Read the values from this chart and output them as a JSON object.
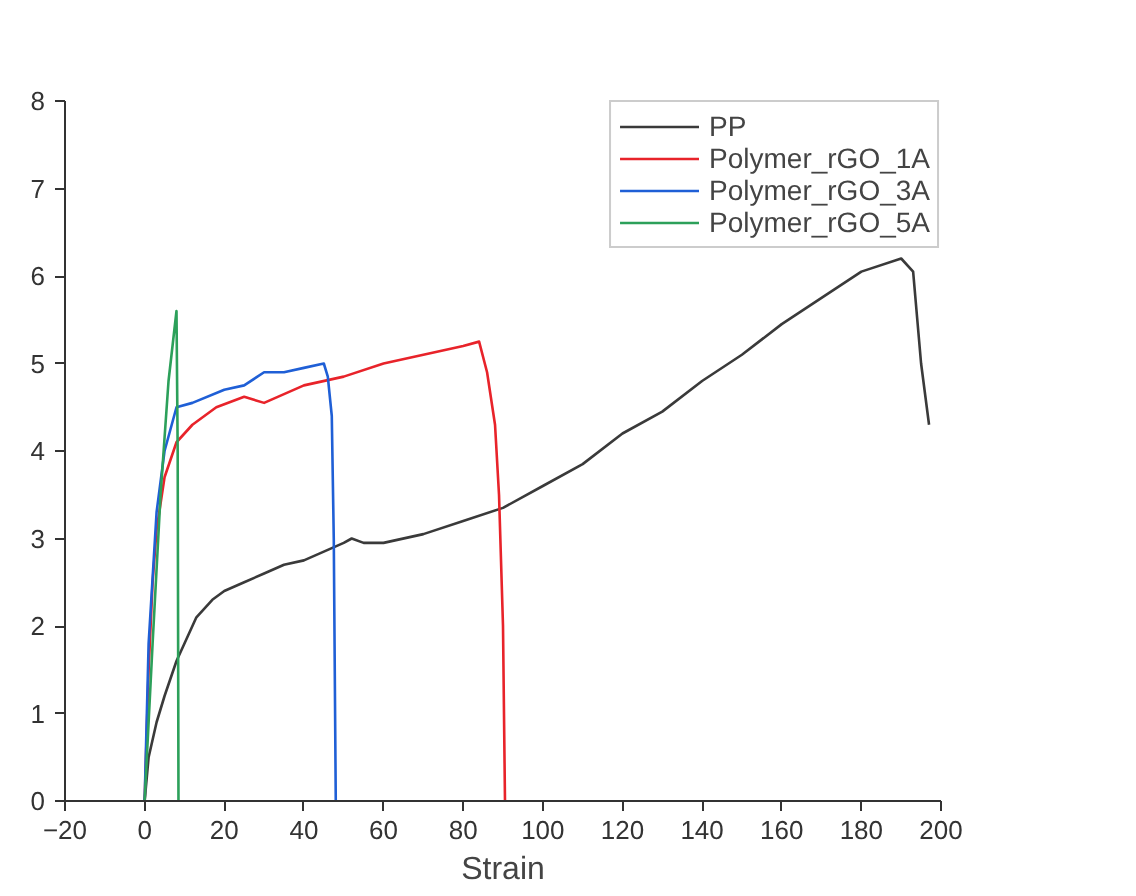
{
  "chart_data": {
    "type": "line",
    "xlabel": "Strain",
    "xlim": [
      -20,
      200
    ],
    "xticks": [
      -20,
      0,
      20,
      40,
      60,
      80,
      100,
      120,
      140,
      160,
      180,
      200
    ],
    "ylim": [
      0,
      8
    ],
    "yticks": [
      0,
      1,
      2,
      3,
      4,
      5,
      6,
      7,
      8
    ],
    "grid": false,
    "legend": "top right",
    "marker": "none",
    "line_style": "solid",
    "series": [
      {
        "name": "PP",
        "color": "#3a3a3a",
        "x": [
          0,
          1,
          3,
          5,
          8,
          10,
          13,
          17,
          20,
          25,
          30,
          35,
          40,
          45,
          50,
          52,
          55,
          60,
          70,
          80,
          90,
          100,
          110,
          120,
          130,
          140,
          150,
          160,
          170,
          180,
          190,
          193,
          195,
          197
        ],
        "values": [
          0,
          0.5,
          0.9,
          1.2,
          1.6,
          1.8,
          2.1,
          2.3,
          2.4,
          2.5,
          2.6,
          2.7,
          2.75,
          2.85,
          2.95,
          3.0,
          2.95,
          2.95,
          3.05,
          3.2,
          3.35,
          3.6,
          3.85,
          4.2,
          4.45,
          4.8,
          5.1,
          5.45,
          5.75,
          6.05,
          6.2,
          6.05,
          5.0,
          4.3
        ]
      },
      {
        "name": "Polymer_rGO_1A",
        "color": "#e8232a",
        "x": [
          0,
          1,
          2,
          3,
          5,
          8,
          12,
          18,
          25,
          30,
          35,
          40,
          50,
          60,
          70,
          80,
          84,
          86,
          88,
          89,
          90,
          90.5
        ],
        "values": [
          0,
          1.5,
          2.5,
          3.1,
          3.7,
          4.1,
          4.3,
          4.5,
          4.62,
          4.55,
          4.65,
          4.75,
          4.85,
          5.0,
          5.1,
          5.2,
          5.25,
          4.9,
          4.3,
          3.5,
          2.0,
          0
        ]
      },
      {
        "name": "Polymer_rGO_3A",
        "color": "#1f5fd6",
        "x": [
          0,
          1,
          3,
          5,
          8,
          12,
          20,
          25,
          30,
          35,
          40,
          45,
          46,
          47,
          47.5,
          48
        ],
        "values": [
          0,
          1.8,
          3.3,
          4.0,
          4.5,
          4.55,
          4.7,
          4.75,
          4.9,
          4.9,
          4.95,
          5.0,
          4.85,
          4.4,
          3.0,
          0
        ]
      },
      {
        "name": "Polymer_rGO_5A",
        "color": "#2ca05a",
        "x": [
          0,
          2,
          4,
          6,
          8,
          8.3,
          8.5
        ],
        "values": [
          0,
          1.8,
          3.5,
          4.8,
          5.6,
          4.0,
          0
        ]
      }
    ]
  }
}
